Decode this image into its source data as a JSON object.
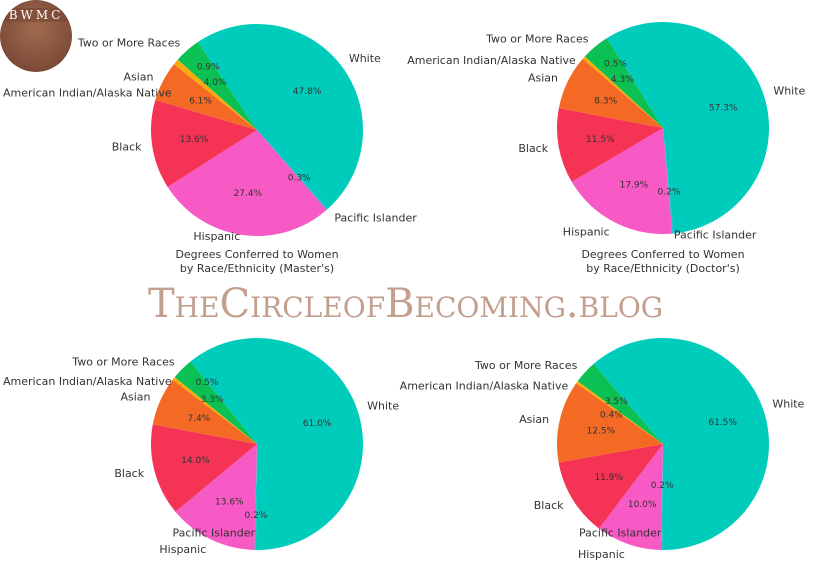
{
  "logo": {
    "text": "BWMC"
  },
  "watermark": "TheCircleofBecoming.blog",
  "colors": {
    "White": "#00CCBC",
    "Pacific Islander": "#22B8D8",
    "Hispanic": "#F75AC4",
    "Black": "#F43355",
    "Asian": "#F46A25",
    "American Indian/Alaska Native": "#FBAA0E",
    "Two or More Races": "#0BC153"
  },
  "chart_data": [
    {
      "type": "pie",
      "title": "",
      "categories": [
        "White",
        "Pacific Islander",
        "Hispanic",
        "Black",
        "Asian",
        "American Indian/Alaska Native",
        "Two or More Races"
      ],
      "values": [
        47.8,
        0.3,
        27.4,
        13.6,
        6.1,
        0.9,
        4.0
      ],
      "pct_labels": [
        "47.8%",
        "0.3%",
        "27.4%",
        "13.6%",
        "6.1%",
        "0.9%",
        "4.0%"
      ]
    },
    {
      "type": "pie",
      "title": "",
      "categories": [
        "White",
        "Pacific Islander",
        "Hispanic",
        "Black",
        "Asian",
        "American Indian/Alaska Native",
        "Two or More Races"
      ],
      "values": [
        57.3,
        0.2,
        17.9,
        11.5,
        8.3,
        0.5,
        4.3
      ],
      "pct_labels": [
        "57.3%",
        "0.2%",
        "17.9%",
        "11.5%",
        "8.3%",
        "0.5%",
        "4.3%"
      ]
    },
    {
      "type": "pie",
      "title": "Degrees Conferred to Women",
      "subtitle": "by Race/Ethnicity (Master's)",
      "categories": [
        "White",
        "Pacific Islander",
        "Hispanic",
        "Black",
        "Asian",
        "American Indian/Alaska Native",
        "Two or More Races"
      ],
      "values": [
        61.0,
        0.2,
        13.6,
        14.0,
        7.4,
        0.5,
        3.3
      ],
      "pct_labels": [
        "61.0%",
        "0.2%",
        "13.6%",
        "14.0%",
        "7.4%",
        "0.5%",
        "3.3%"
      ]
    },
    {
      "type": "pie",
      "title": "Degrees Conferred to Women",
      "subtitle": "by Race/Ethnicity (Doctor's)",
      "categories": [
        "White",
        "Pacific Islander",
        "Hispanic",
        "Black",
        "Asian",
        "American Indian/Alaska Native",
        "Two or More Races"
      ],
      "values": [
        61.5,
        0.2,
        10.0,
        11.9,
        12.5,
        0.4,
        3.5
      ],
      "pct_labels": [
        "61.5%",
        "0.2%",
        "10.0%",
        "11.9%",
        "12.5%",
        "0.4%",
        "3.5%"
      ]
    }
  ]
}
